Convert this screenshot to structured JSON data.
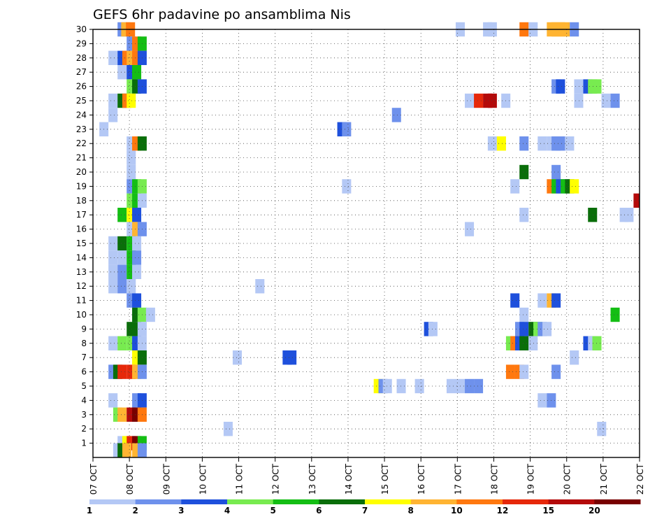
{
  "chart_data": {
    "type": "heatmap",
    "title": "GEFS 6hr padavine po ansamblima Nis",
    "x_tick_labels": [
      "07 OCT",
      "08 OCT",
      "09 OCT",
      "10 OCT",
      "11 OCT",
      "12 OCT",
      "13 OCT",
      "14 OCT",
      "15 OCT",
      "16 OCT",
      "17 OCT",
      "18 OCT",
      "19 OCT",
      "20 OCT",
      "21 OCT",
      "22 OCT"
    ],
    "xlim_days": [
      0,
      15
    ],
    "y_tick_labels": [
      "1",
      "2",
      "3",
      "4",
      "5",
      "6",
      "7",
      "8",
      "9",
      "10",
      "11",
      "12",
      "13",
      "14",
      "15",
      "16",
      "17",
      "18",
      "19",
      "20",
      "21",
      "22",
      "23",
      "24",
      "25",
      "26",
      "27",
      "28",
      "29",
      "30"
    ],
    "ylim": [
      0,
      30
    ],
    "grid": true,
    "colorbar": {
      "labels": [
        "1",
        "2",
        "3",
        "4",
        "5",
        "6",
        "7",
        "8",
        "10",
        "12",
        "15",
        "20"
      ],
      "colors": [
        "#b4c8f5",
        "#6e91ec",
        "#1e50dc",
        "#78eb50",
        "#14be14",
        "#0a6e0a",
        "#ffff00",
        "#ffb432",
        "#ff780f",
        "#e6280a",
        "#b40a0a",
        "#780000"
      ]
    },
    "cells": [
      [
        30,
        0.8,
        1
      ],
      [
        30,
        0.9,
        7
      ],
      [
        30,
        1.03,
        8
      ],
      [
        30,
        10.08,
        0
      ],
      [
        30,
        10.83,
        0
      ],
      [
        30,
        10.96,
        0
      ],
      [
        30,
        11.83,
        8
      ],
      [
        30,
        12.08,
        0
      ],
      [
        30,
        12.58,
        7
      ],
      [
        30,
        12.71,
        7
      ],
      [
        30,
        12.83,
        7
      ],
      [
        30,
        12.96,
        7
      ],
      [
        30,
        13.21,
        1
      ],
      [
        29,
        1.05,
        1
      ],
      [
        29,
        1.2,
        8
      ],
      [
        29,
        1.35,
        4
      ],
      [
        28,
        0.55,
        0
      ],
      [
        28,
        0.8,
        2
      ],
      [
        28,
        0.93,
        8
      ],
      [
        28,
        1.05,
        7
      ],
      [
        28,
        1.2,
        8
      ],
      [
        28,
        1.35,
        2
      ],
      [
        27,
        0.8,
        0
      ],
      [
        27,
        1.05,
        2
      ],
      [
        27,
        1.2,
        4
      ],
      [
        26,
        1.05,
        3
      ],
      [
        26,
        1.2,
        5
      ],
      [
        26,
        1.35,
        2
      ],
      [
        26,
        12.71,
        1
      ],
      [
        26,
        12.83,
        2
      ],
      [
        26,
        13.33,
        0
      ],
      [
        26,
        13.58,
        2
      ],
      [
        26,
        13.71,
        3
      ],
      [
        26,
        13.83,
        3
      ],
      [
        25,
        0.55,
        0
      ],
      [
        25,
        0.8,
        5
      ],
      [
        25,
        0.93,
        8
      ],
      [
        25,
        1.05,
        6
      ],
      [
        25,
        10.33,
        0
      ],
      [
        25,
        10.58,
        9
      ],
      [
        25,
        10.83,
        10
      ],
      [
        25,
        10.96,
        10
      ],
      [
        25,
        11.33,
        0
      ],
      [
        25,
        13.33,
        0
      ],
      [
        25,
        14.08,
        0
      ],
      [
        25,
        14.33,
        1
      ],
      [
        24,
        0.55,
        0
      ],
      [
        24,
        8.33,
        1
      ],
      [
        23,
        0.3,
        0
      ],
      [
        23,
        6.83,
        2
      ],
      [
        23,
        6.96,
        1
      ],
      [
        22,
        1.05,
        0
      ],
      [
        22,
        1.2,
        8
      ],
      [
        22,
        1.35,
        5
      ],
      [
        22,
        10.96,
        0
      ],
      [
        22,
        11.21,
        6
      ],
      [
        22,
        11.83,
        1
      ],
      [
        22,
        12.33,
        0
      ],
      [
        22,
        12.58,
        0
      ],
      [
        22,
        12.71,
        1
      ],
      [
        22,
        12.83,
        1
      ],
      [
        22,
        13.08,
        0
      ],
      [
        21,
        1.05,
        0
      ],
      [
        20,
        1.05,
        0
      ],
      [
        20,
        11.83,
        5
      ],
      [
        20,
        12.71,
        1
      ],
      [
        19,
        1.05,
        1
      ],
      [
        19,
        1.2,
        4
      ],
      [
        19,
        1.35,
        3
      ],
      [
        19,
        6.96,
        0
      ],
      [
        19,
        11.58,
        0
      ],
      [
        19,
        12.58,
        8
      ],
      [
        19,
        12.71,
        4
      ],
      [
        19,
        12.83,
        2
      ],
      [
        19,
        12.96,
        4
      ],
      [
        19,
        13.08,
        5
      ],
      [
        19,
        13.21,
        6
      ],
      [
        18,
        1.05,
        3
      ],
      [
        18,
        1.2,
        4
      ],
      [
        18,
        1.35,
        0
      ],
      [
        18,
        14.96,
        10
      ],
      [
        17,
        0.8,
        4
      ],
      [
        17,
        1.05,
        6
      ],
      [
        17,
        1.2,
        2
      ],
      [
        17,
        11.83,
        0
      ],
      [
        17,
        13.71,
        5
      ],
      [
        17,
        14.58,
        0
      ],
      [
        17,
        14.71,
        0
      ],
      [
        16,
        1.05,
        0
      ],
      [
        16,
        1.2,
        7
      ],
      [
        16,
        1.35,
        1
      ],
      [
        16,
        10.33,
        0
      ],
      [
        15,
        0.55,
        0
      ],
      [
        15,
        0.8,
        5
      ],
      [
        15,
        1.05,
        4
      ],
      [
        15,
        1.2,
        0
      ],
      [
        14,
        0.55,
        0
      ],
      [
        14,
        0.8,
        0
      ],
      [
        14,
        1.05,
        4
      ],
      [
        14,
        1.2,
        1
      ],
      [
        13,
        0.55,
        0
      ],
      [
        13,
        0.8,
        1
      ],
      [
        13,
        1.05,
        4
      ],
      [
        13,
        1.2,
        0
      ],
      [
        12,
        0.55,
        0
      ],
      [
        12,
        0.8,
        1
      ],
      [
        12,
        1.05,
        0
      ],
      [
        12,
        4.58,
        0
      ],
      [
        11,
        1.05,
        1
      ],
      [
        11,
        1.2,
        2
      ],
      [
        11,
        11.58,
        2
      ],
      [
        11,
        12.33,
        0
      ],
      [
        11,
        12.58,
        7
      ],
      [
        11,
        12.71,
        2
      ],
      [
        10,
        1.2,
        5
      ],
      [
        10,
        1.35,
        3
      ],
      [
        10,
        1.58,
        0
      ],
      [
        10,
        11.83,
        0
      ],
      [
        10,
        14.33,
        4
      ],
      [
        9,
        1.05,
        5
      ],
      [
        9,
        1.2,
        5
      ],
      [
        9,
        1.35,
        0
      ],
      [
        9,
        9.21,
        2
      ],
      [
        9,
        9.33,
        0
      ],
      [
        9,
        11.71,
        1
      ],
      [
        9,
        11.83,
        2
      ],
      [
        9,
        12.08,
        5
      ],
      [
        9,
        12.21,
        3
      ],
      [
        9,
        12.33,
        1
      ],
      [
        9,
        12.46,
        0
      ],
      [
        8,
        0.55,
        0
      ],
      [
        8,
        0.8,
        3
      ],
      [
        8,
        1.05,
        3
      ],
      [
        8,
        1.2,
        2
      ],
      [
        8,
        1.35,
        0
      ],
      [
        8,
        11.46,
        3
      ],
      [
        8,
        11.58,
        8
      ],
      [
        8,
        11.71,
        2
      ],
      [
        8,
        11.83,
        5
      ],
      [
        8,
        12.08,
        0
      ],
      [
        8,
        13.58,
        2
      ],
      [
        8,
        13.71,
        0
      ],
      [
        8,
        13.83,
        3
      ],
      [
        7,
        1.2,
        6
      ],
      [
        7,
        1.35,
        5
      ],
      [
        7,
        3.96,
        0
      ],
      [
        7,
        5.33,
        2
      ],
      [
        7,
        5.46,
        2
      ],
      [
        7,
        13.21,
        0
      ],
      [
        6,
        0.55,
        1
      ],
      [
        6,
        0.68,
        5
      ],
      [
        6,
        0.8,
        9
      ],
      [
        6,
        1.05,
        9
      ],
      [
        6,
        1.2,
        7
      ],
      [
        6,
        1.35,
        1
      ],
      [
        6,
        11.46,
        8
      ],
      [
        6,
        11.71,
        8
      ],
      [
        6,
        11.83,
        0
      ],
      [
        6,
        12.71,
        1
      ],
      [
        5,
        7.83,
        6
      ],
      [
        5,
        7.96,
        1
      ],
      [
        5,
        8.08,
        0
      ],
      [
        5,
        8.46,
        0
      ],
      [
        5,
        8.96,
        0
      ],
      [
        5,
        9.83,
        0
      ],
      [
        5,
        10.08,
        0
      ],
      [
        5,
        10.33,
        1
      ],
      [
        5,
        10.58,
        1
      ],
      [
        4,
        0.55,
        0
      ],
      [
        4,
        1.2,
        1
      ],
      [
        4,
        1.35,
        2
      ],
      [
        4,
        12.33,
        0
      ],
      [
        4,
        12.58,
        1
      ],
      [
        3,
        0.68,
        3
      ],
      [
        3,
        0.8,
        7
      ],
      [
        3,
        1.05,
        10
      ],
      [
        3,
        1.2,
        11
      ],
      [
        3,
        1.35,
        8
      ],
      [
        2,
        3.71,
        0
      ],
      [
        2,
        13.96,
        0
      ],
      [
        1,
        0.8,
        0
      ],
      [
        1,
        0.93,
        6
      ],
      [
        1,
        1.05,
        9
      ],
      [
        1,
        1.2,
        11
      ],
      [
        1,
        1.35,
        4
      ],
      [
        0.5,
        0.68,
        0
      ],
      [
        0.5,
        0.8,
        5
      ],
      [
        0.5,
        0.93,
        7
      ],
      [
        0.5,
        1.2,
        7
      ],
      [
        0.5,
        1.35,
        1
      ]
    ]
  }
}
